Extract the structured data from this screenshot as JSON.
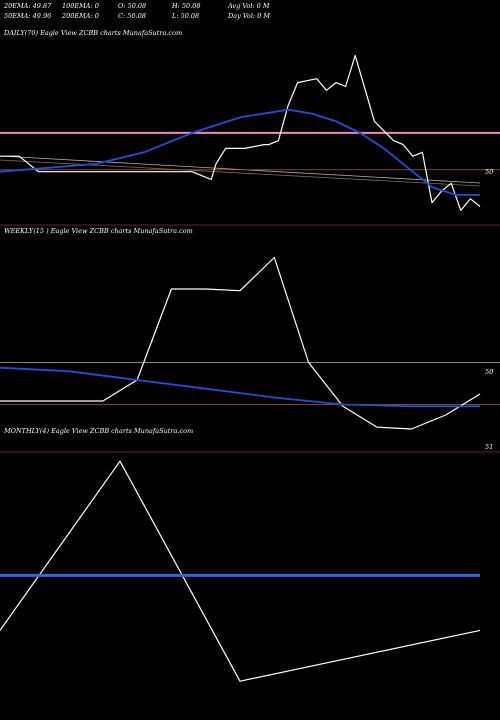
{
  "header": {
    "row1": [
      {
        "label": "20EMA: 49.87"
      },
      {
        "label": "100EMA: 0"
      },
      {
        "label": "O: 50.08"
      },
      {
        "label": "H: 50.08"
      },
      {
        "label": "Avg Vol: 0  M"
      }
    ],
    "row2": [
      {
        "label": "50EMA: 49.96"
      },
      {
        "label": "200EMA: 0"
      },
      {
        "label": "C: 50.08"
      },
      {
        "label": "L: 50.08"
      },
      {
        "label": "Day Vol: 0  M"
      }
    ]
  },
  "colors": {
    "background": "#000000",
    "price": "#ffffff",
    "ema_blue": "#1f4fd8",
    "ma_grey": "#b0b0b0",
    "ref_brown": "#b05a2c",
    "ref_pink": "#ff80c0",
    "divider": "#8b3030"
  },
  "chart_data": [
    {
      "type": "line",
      "title": "DAILY(70) Eagle  View  ZCBB charts MunafaSutra.com",
      "y_tick_labels": [
        "50"
      ],
      "series": [
        {
          "role": "price",
          "color": "#ffffff",
          "x": [
            0,
            4,
            8,
            13,
            18,
            22,
            27,
            31,
            35,
            40,
            44,
            45,
            47,
            51,
            55,
            56,
            58,
            60,
            62,
            66,
            68,
            70,
            72,
            74,
            78,
            82,
            84,
            86,
            88,
            90,
            92,
            94,
            96,
            98,
            100
          ],
          "y": [
            50.3,
            50.3,
            49.9,
            49.9,
            49.9,
            49.9,
            49.9,
            49.9,
            49.9,
            49.9,
            49.7,
            50.1,
            50.5,
            50.5,
            50.6,
            50.6,
            50.7,
            51.6,
            52.2,
            52.3,
            52.0,
            52.2,
            52.1,
            52.9,
            51.2,
            50.7,
            50.6,
            50.3,
            50.4,
            49.1,
            49.4,
            49.6,
            48.9,
            49.2,
            49.0
          ]
        },
        {
          "role": "ema",
          "color": "#1f4fd8",
          "x": [
            0,
            10,
            20,
            30,
            40,
            50,
            60,
            65,
            70,
            75,
            80,
            85,
            90,
            95,
            100
          ],
          "y": [
            49.9,
            50.0,
            50.1,
            50.4,
            50.9,
            51.3,
            51.5,
            51.4,
            51.2,
            50.9,
            50.5,
            50.0,
            49.5,
            49.3,
            49.3
          ]
        }
      ],
      "reference_lines": [
        {
          "label": "pink",
          "color": "#ff80c0",
          "y": 50.9
        },
        {
          "label": "brown",
          "color": "#b05a2c",
          "y": 49.95
        }
      ]
    },
    {
      "type": "line",
      "title": "WEEKLY(15                    ) Eagle  View  ZCBB charts MunafaSutra.com",
      "y_tick_labels": [
        "50"
      ],
      "series": [
        {
          "role": "price",
          "color": "#ffffff",
          "x": [
            0,
            1,
            2,
            3,
            4,
            5,
            6,
            7,
            8,
            9,
            10,
            11,
            12,
            13,
            14
          ],
          "y": [
            50.08,
            50.08,
            50.08,
            50.08,
            50.2,
            50.72,
            50.72,
            50.71,
            50.9,
            50.3,
            50.05,
            49.93,
            49.92,
            50.0,
            50.12
          ]
        },
        {
          "role": "ema",
          "color": "#1f4fd8",
          "x": [
            0,
            2,
            4,
            6,
            8,
            10,
            12,
            14
          ],
          "y": [
            50.27,
            50.25,
            50.2,
            50.15,
            50.1,
            50.06,
            50.05,
            50.05
          ]
        }
      ],
      "reference_lines": [
        {
          "label": "grey",
          "color": "#b0b0b0",
          "y": 50.3
        },
        {
          "label": "brown",
          "color": "#b05a2c",
          "y": 50.06
        }
      ]
    },
    {
      "type": "line",
      "title": "MONTHLY(4) Eagle  View  ZCBB charts MunafaSutra.com",
      "y_tick_labels": [
        "51"
      ],
      "series": [
        {
          "role": "price",
          "color": "#ffffff",
          "x": [
            0,
            1,
            2,
            3,
            4
          ],
          "y": [
            49.95,
            50.35,
            49.83,
            49.89,
            49.95
          ]
        },
        {
          "role": "ema",
          "color": "#2a6be0",
          "x": [
            0,
            4
          ],
          "y": [
            50.08,
            50.08
          ]
        }
      ]
    }
  ]
}
